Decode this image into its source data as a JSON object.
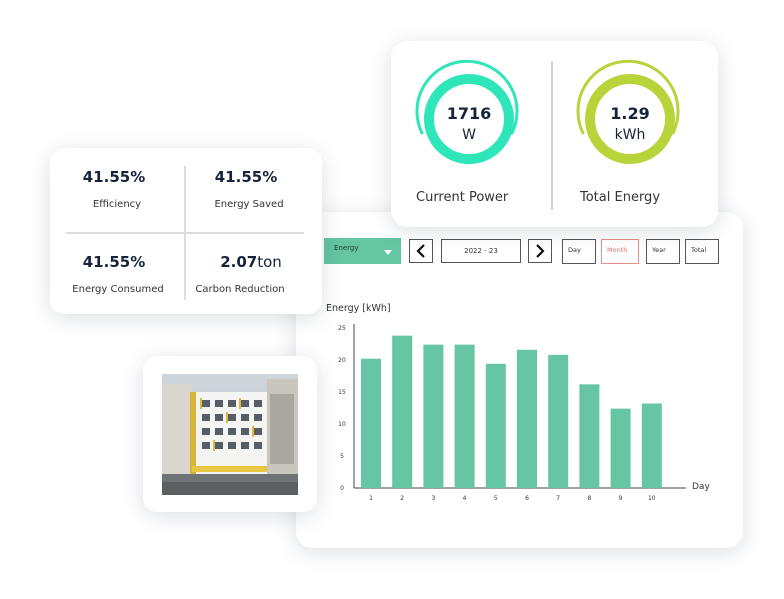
{
  "colors": {
    "accent_green": "#66c5a2",
    "gauge_teal": "#2ee6b9",
    "gauge_lime": "#b8d43b",
    "active_red": "#e4716b"
  },
  "stats": {
    "efficiency_value": "41.55%",
    "efficiency_label": "Efficiency",
    "saved_value": "41.55%",
    "saved_label": "Energy Saved",
    "consumed_value": "41.55%",
    "consumed_label": "Energy Consumed",
    "carbon_value": "2.07",
    "carbon_unit": "ton",
    "carbon_label": "Carbon Reduction"
  },
  "gauges": {
    "power_value": "1716",
    "power_unit": "W",
    "power_label": "Current Power",
    "energy_value": "1.29",
    "energy_unit": "kWh",
    "energy_label": "Total Energy"
  },
  "controls": {
    "metric_select": "Energy",
    "date_range": "2022 - 23",
    "periods": [
      "Day",
      "Month",
      "Year",
      "Total"
    ],
    "active_period": "Month",
    "prev_icon": "chevron-left-icon",
    "next_icon": "chevron-right-icon"
  },
  "chart_data": {
    "type": "bar",
    "ylabel": "Energy [kWh]",
    "xlabel": "Day",
    "categories": [
      "1",
      "2",
      "3",
      "4",
      "5",
      "6",
      "7",
      "8",
      "9",
      "10"
    ],
    "values": [
      20.2,
      23.8,
      22.4,
      22.4,
      19.4,
      21.6,
      20.8,
      16.2,
      12.4,
      13.2
    ],
    "ylim": [
      0,
      25
    ],
    "yticks": [
      "0",
      "5",
      "10",
      "15",
      "20",
      "25"
    ],
    "grid": false,
    "legend": "none",
    "bar_color": "#66c5a2"
  }
}
